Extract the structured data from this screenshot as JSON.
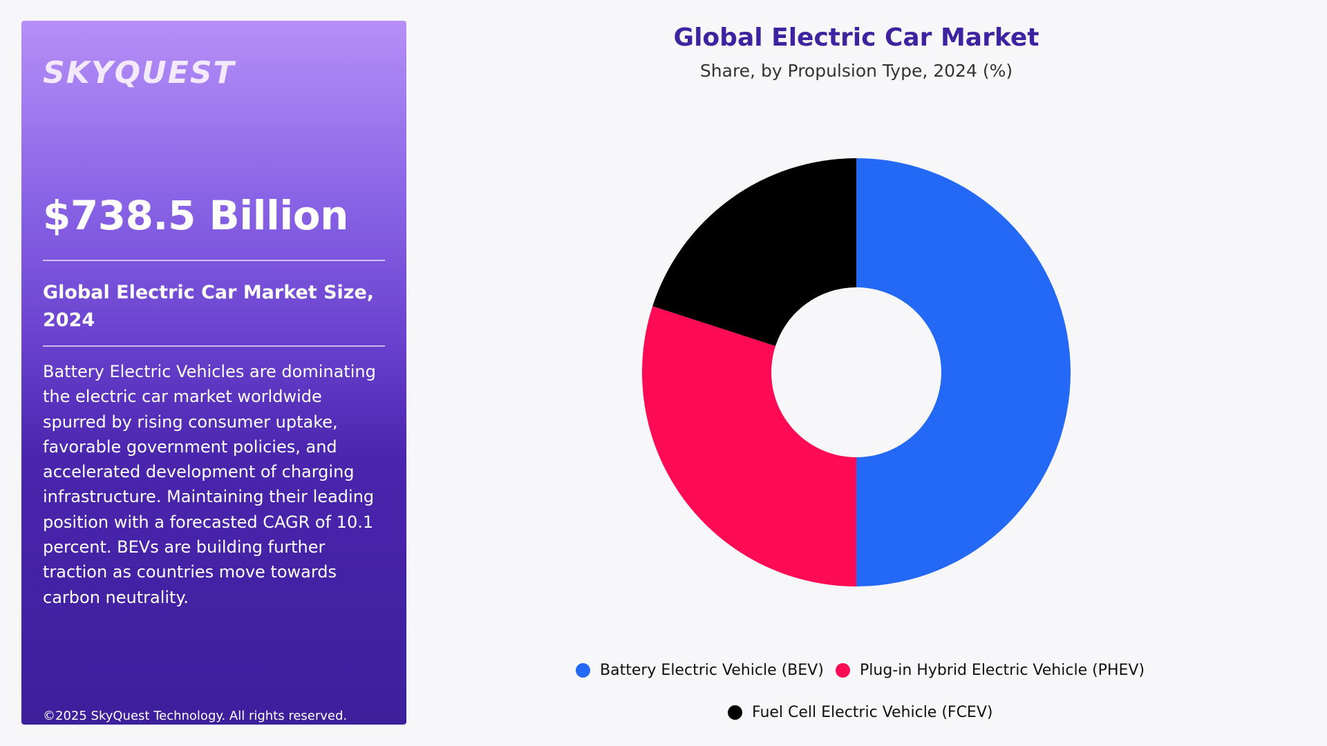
{
  "brand": {
    "logo_text": "SKYQUEST"
  },
  "summary": {
    "market_value": "$738.5 Billion",
    "market_label": "Global Electric Car Market Size, 2024",
    "description": "Battery Electric Vehicles are dominating the electric car market worldwide spurred by rising consumer uptake, favorable government policies, and accelerated development of charging infrastructure. Maintaining their leading position with a forecasted CAGR of 10.1 percent. BEVs are building further traction as countries move towards carbon neutrality.",
    "copyright": "©2025 SkyQuest Technology. All rights reserved."
  },
  "chart_data": {
    "type": "pie",
    "style": "donut",
    "title": "Global Electric Car Market",
    "subtitle": "Share, by Propulsion Type, 2024 (%)",
    "categories": [
      "Battery Electric Vehicle (BEV)",
      "Plug-in Hybrid Electric Vehicle (PHEV)",
      "Fuel Cell Electric Vehicle (FCEV)"
    ],
    "values": [
      50,
      30,
      20
    ],
    "colors": [
      "#2469f5",
      "#ff0a54",
      "#000000"
    ],
    "legend_position": "bottom"
  }
}
